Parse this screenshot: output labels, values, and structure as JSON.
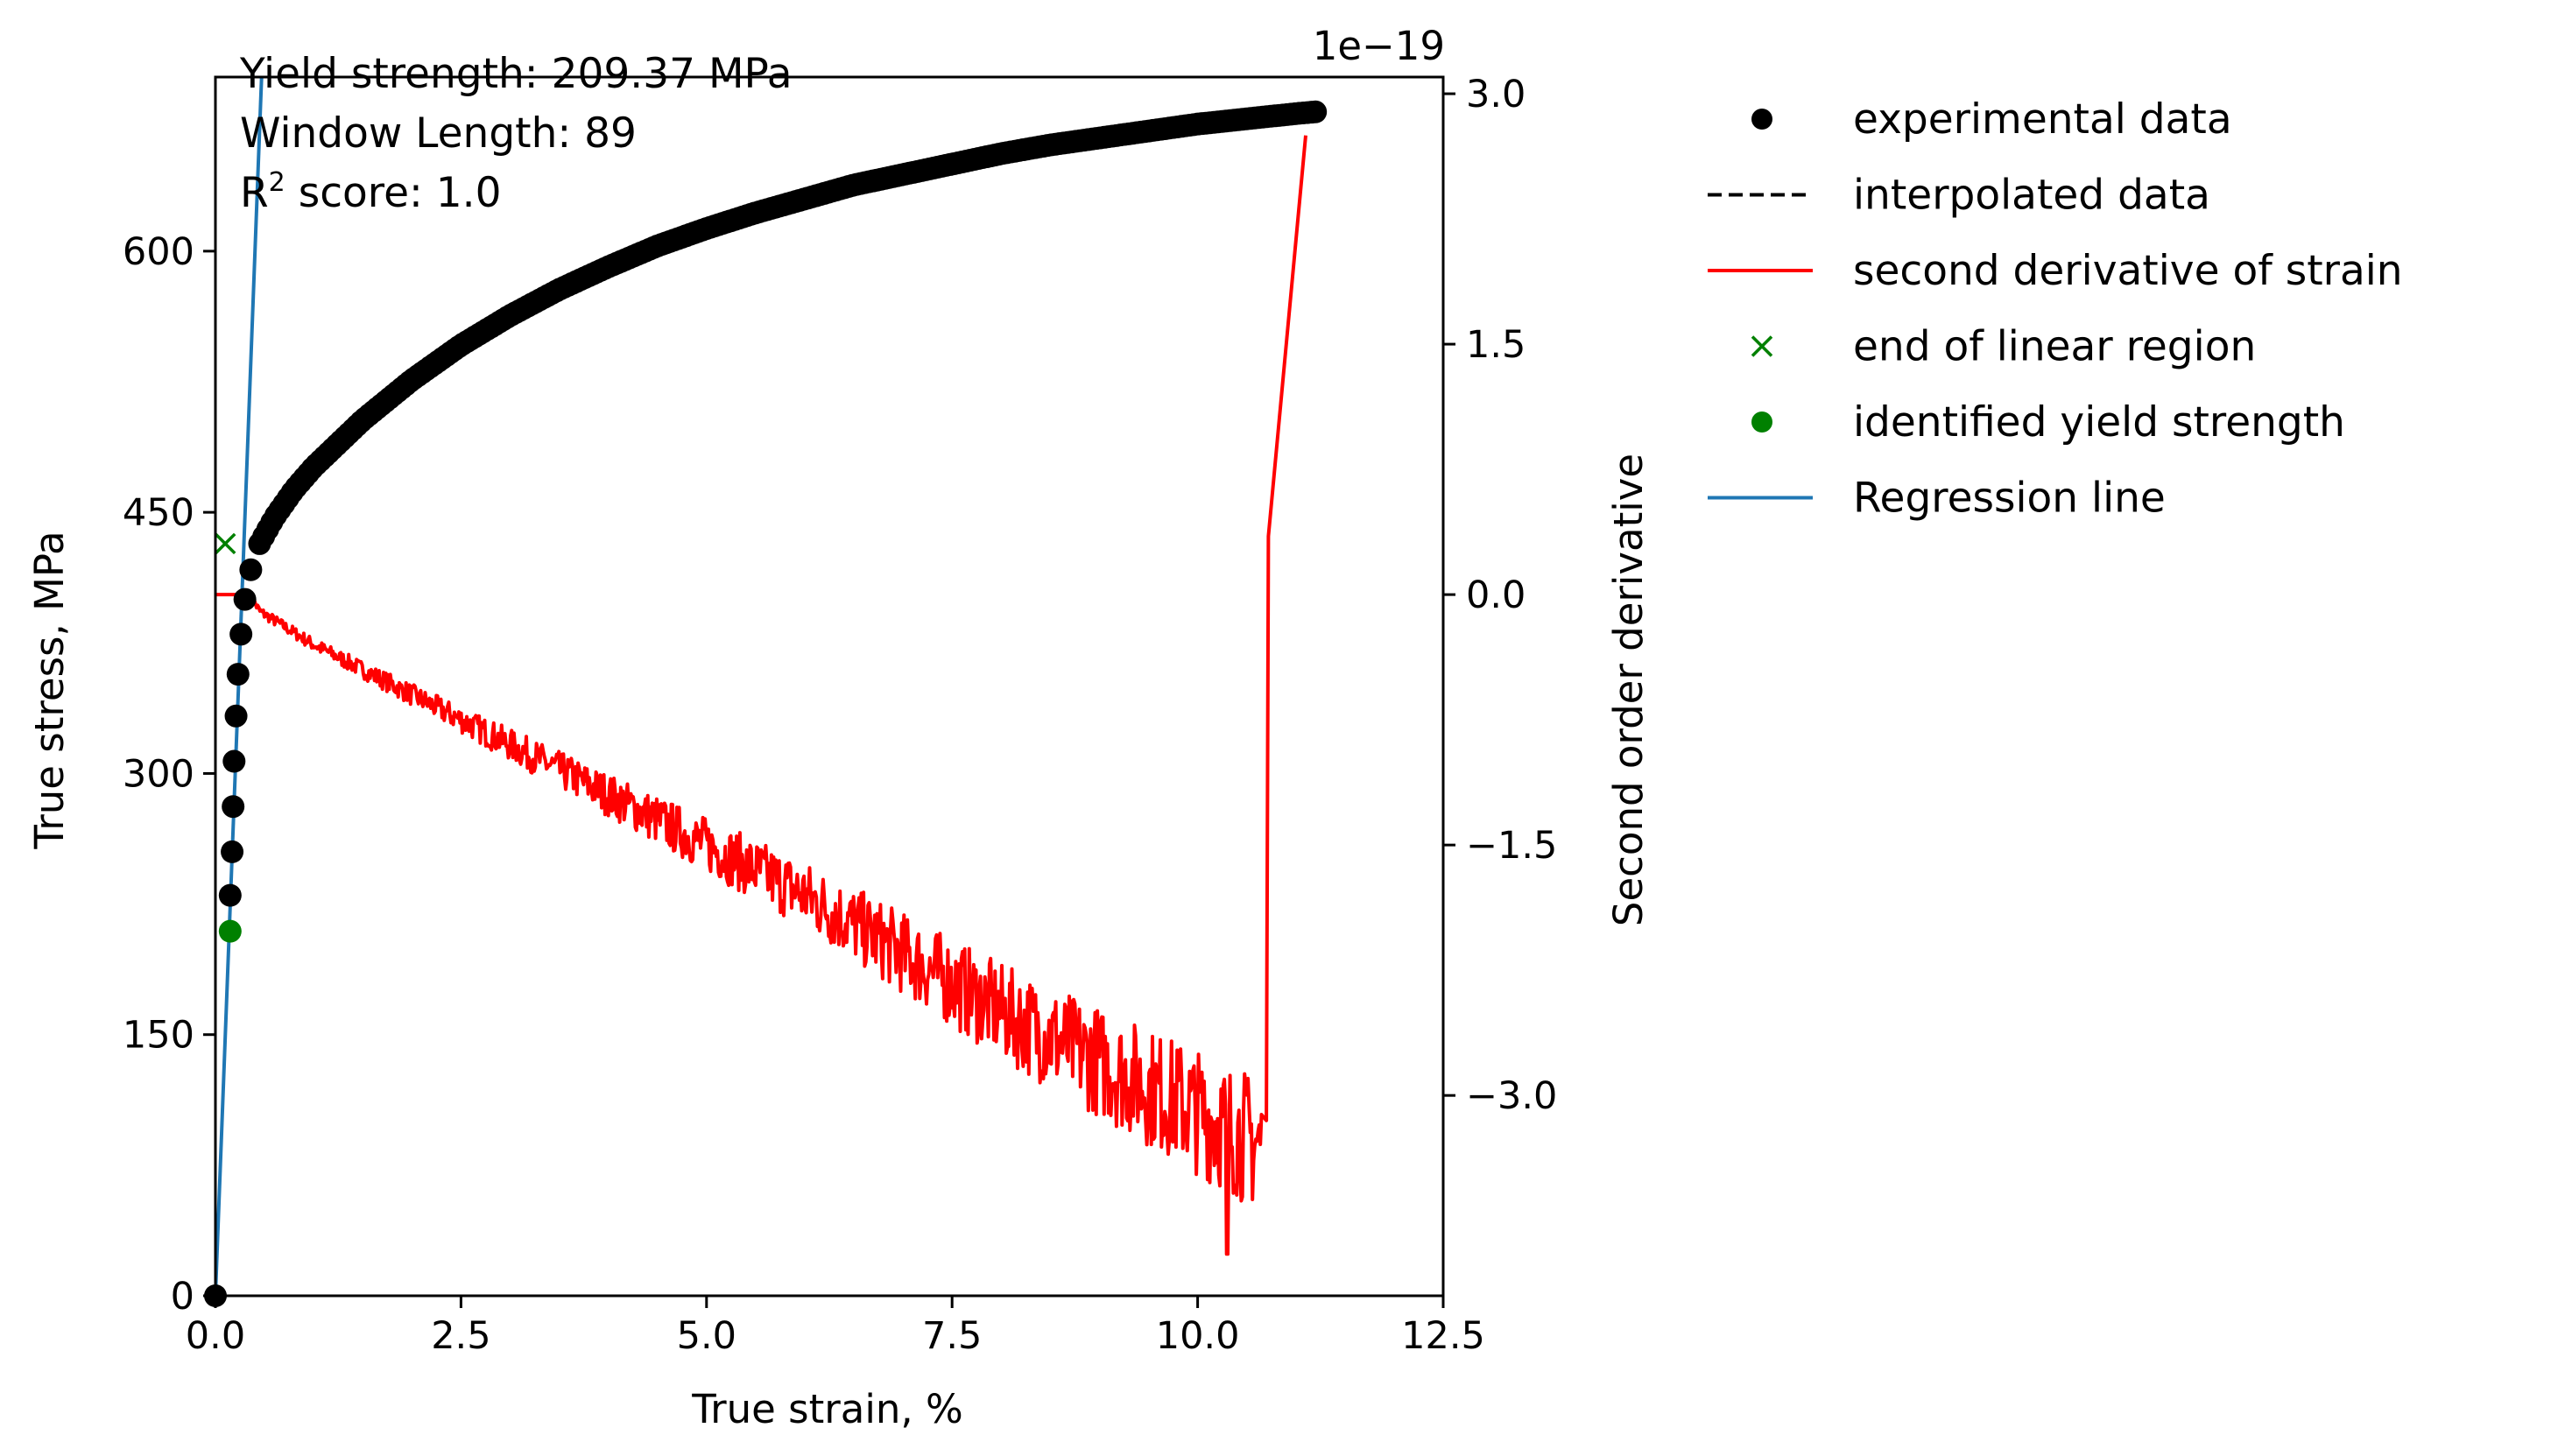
{
  "chart_data": {
    "type": "line",
    "annotations": {
      "yield_line": "Yield strength: 209.37 MPa",
      "window_line": "Window Length: 89",
      "r2_prefix": "R",
      "r2_sup": "2",
      "r2_suffix": " score: 1.0"
    },
    "xlabel": "True strain, %",
    "ylabel": "True stress, MPa",
    "y2label": "Second order derivative",
    "y2_offset_label": "1e−19",
    "xlim": [
      0,
      12.5
    ],
    "ylim": [
      0,
      700
    ],
    "y2lim": [
      -4.2,
      3.1
    ],
    "y2_scale_exponent": -19,
    "x_ticks": [
      {
        "value": 0,
        "label": "0.0"
      },
      {
        "value": 2.5,
        "label": "2.5"
      },
      {
        "value": 5,
        "label": "5.0"
      },
      {
        "value": 7.5,
        "label": "7.5"
      },
      {
        "value": 10,
        "label": "10.0"
      },
      {
        "value": 12.5,
        "label": "12.5"
      }
    ],
    "y_ticks": [
      {
        "value": 0,
        "label": "0"
      },
      {
        "value": 150,
        "label": "150"
      },
      {
        "value": 300,
        "label": "300"
      },
      {
        "value": 450,
        "label": "450"
      },
      {
        "value": 600,
        "label": "600"
      }
    ],
    "y2_ticks": [
      {
        "value": 3.0,
        "label": "3.0"
      },
      {
        "value": 1.5,
        "label": "1.5"
      },
      {
        "value": 0.0,
        "label": "0.0"
      },
      {
        "value": -1.5,
        "label": "−1.5"
      },
      {
        "value": -3.0,
        "label": "−3.0"
      }
    ],
    "grid": false,
    "legend_position": "outside-right",
    "legend": [
      {
        "label": "experimental data",
        "marker": "dot",
        "color": "#000000"
      },
      {
        "label": "interpolated data",
        "marker": "dashed",
        "color": "#000000"
      },
      {
        "label": "second derivative of strain",
        "marker": "line",
        "color": "#ff0000"
      },
      {
        "label": "end of linear region",
        "marker": "x",
        "color": "#008000"
      },
      {
        "label": "identified yield strength",
        "marker": "dot",
        "color": "#008000"
      },
      {
        "label": "Regression line",
        "marker": "line",
        "color": "#1f77b4"
      }
    ],
    "experimental_elastic_points": [
      {
        "x": 0.0,
        "y": 0
      },
      {
        "x": 0.15,
        "y": 230
      },
      {
        "x": 0.17,
        "y": 255
      },
      {
        "x": 0.18,
        "y": 281
      },
      {
        "x": 0.19,
        "y": 307
      },
      {
        "x": 0.21,
        "y": 333
      },
      {
        "x": 0.23,
        "y": 357
      },
      {
        "x": 0.26,
        "y": 380
      },
      {
        "x": 0.3,
        "y": 400
      },
      {
        "x": 0.36,
        "y": 417
      }
    ],
    "experimental_plastic_curve": [
      {
        "x": 0.45,
        "y": 432
      },
      {
        "x": 0.6,
        "y": 447
      },
      {
        "x": 0.8,
        "y": 463
      },
      {
        "x": 1.0,
        "y": 476
      },
      {
        "x": 1.5,
        "y": 503
      },
      {
        "x": 2.0,
        "y": 526
      },
      {
        "x": 2.5,
        "y": 546
      },
      {
        "x": 3.0,
        "y": 563
      },
      {
        "x": 3.5,
        "y": 578
      },
      {
        "x": 4.0,
        "y": 591
      },
      {
        "x": 4.5,
        "y": 603
      },
      {
        "x": 5.0,
        "y": 613
      },
      {
        "x": 5.5,
        "y": 622
      },
      {
        "x": 6.0,
        "y": 630
      },
      {
        "x": 6.5,
        "y": 638
      },
      {
        "x": 7.0,
        "y": 644
      },
      {
        "x": 7.5,
        "y": 650
      },
      {
        "x": 8.0,
        "y": 656
      },
      {
        "x": 8.5,
        "y": 661
      },
      {
        "x": 9.0,
        "y": 665
      },
      {
        "x": 9.5,
        "y": 669
      },
      {
        "x": 10.0,
        "y": 673
      },
      {
        "x": 10.5,
        "y": 676
      },
      {
        "x": 11.0,
        "y": 679
      },
      {
        "x": 11.2,
        "y": 680
      }
    ],
    "regression_line": [
      {
        "x": 0.0,
        "y": 0
      },
      {
        "x": 0.47,
        "y": 700
      }
    ],
    "second_derivative_trend": [
      {
        "x": 0.0,
        "y2": 0.0
      },
      {
        "x": 0.35,
        "y2": 0.0
      },
      {
        "x": 0.45,
        "y2": -0.1
      },
      {
        "x": 1.0,
        "y2": -0.3
      },
      {
        "x": 2.0,
        "y2": -0.6
      },
      {
        "x": 3.0,
        "y2": -0.9
      },
      {
        "x": 4.0,
        "y2": -1.2
      },
      {
        "x": 5.0,
        "y2": -1.5
      },
      {
        "x": 6.0,
        "y2": -1.8
      },
      {
        "x": 7.0,
        "y2": -2.15
      },
      {
        "x": 8.0,
        "y2": -2.5
      },
      {
        "x": 9.0,
        "y2": -2.8
      },
      {
        "x": 10.0,
        "y2": -3.1
      },
      {
        "x": 10.65,
        "y2": -3.3
      }
    ],
    "second_derivative_tail": [
      {
        "x": 10.7,
        "y2": -3.15
      },
      {
        "x": 10.72,
        "y2": 0.35
      },
      {
        "x": 11.1,
        "y2": 2.75
      }
    ],
    "second_derivative_min_spike": {
      "x": 10.3,
      "y2": -3.95
    },
    "end_of_linear_region": {
      "x": 0.1,
      "y": 432
    },
    "identified_yield_strength": {
      "x": 0.15,
      "y": 209.37
    },
    "colors": {
      "experimental": "#000000",
      "second_derivative": "#ff0000",
      "end_of_linear_region": "#008000",
      "yield_point": "#008000",
      "regression": "#1f77b4"
    }
  }
}
